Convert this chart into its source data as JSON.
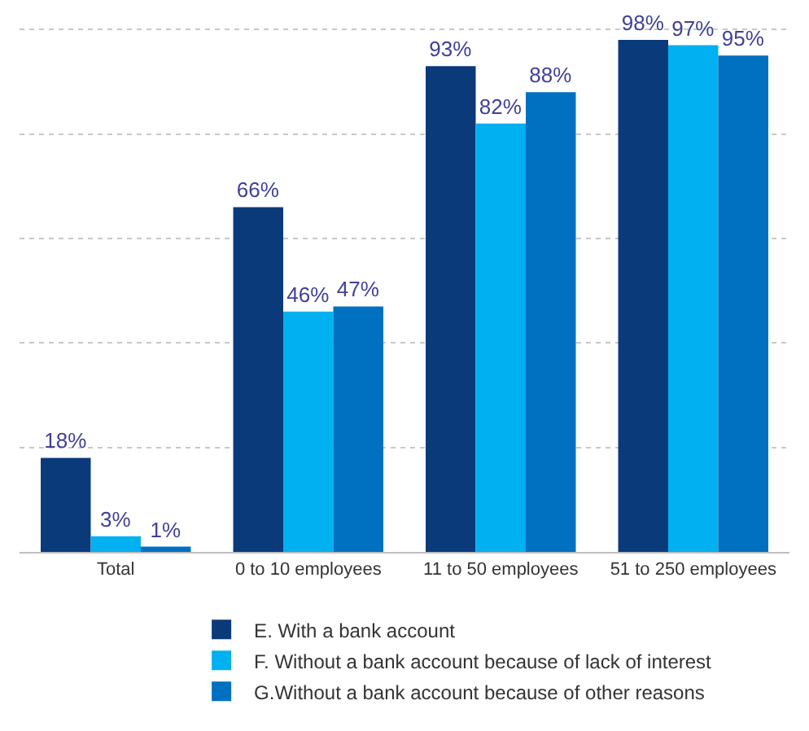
{
  "chart_data": {
    "type": "bar",
    "categories": [
      "Total",
      "0 to 10 employees",
      "11 to 50 employees",
      "51 to 250 employees"
    ],
    "series": [
      {
        "name": "E. With a bank account",
        "color": "#0b3a7a",
        "values": [
          18,
          66,
          93,
          98
        ],
        "value_labels": [
          "18%",
          "66%",
          "93%",
          "98%"
        ]
      },
      {
        "name": "F. Without a bank account because of lack of interest",
        "color": "#00b0f0",
        "values": [
          3,
          46,
          82,
          97
        ],
        "value_labels": [
          "3%",
          "46%",
          "82%",
          "97%"
        ]
      },
      {
        "name": "G.Without a bank account because of other reasons",
        "color": "#0070c0",
        "values": [
          1,
          47,
          88,
          95
        ],
        "value_labels": [
          "1%",
          "47%",
          "88%",
          "95%"
        ]
      }
    ],
    "grid": "y",
    "legend": "bottom",
    "tick_labels": "x"
  }
}
